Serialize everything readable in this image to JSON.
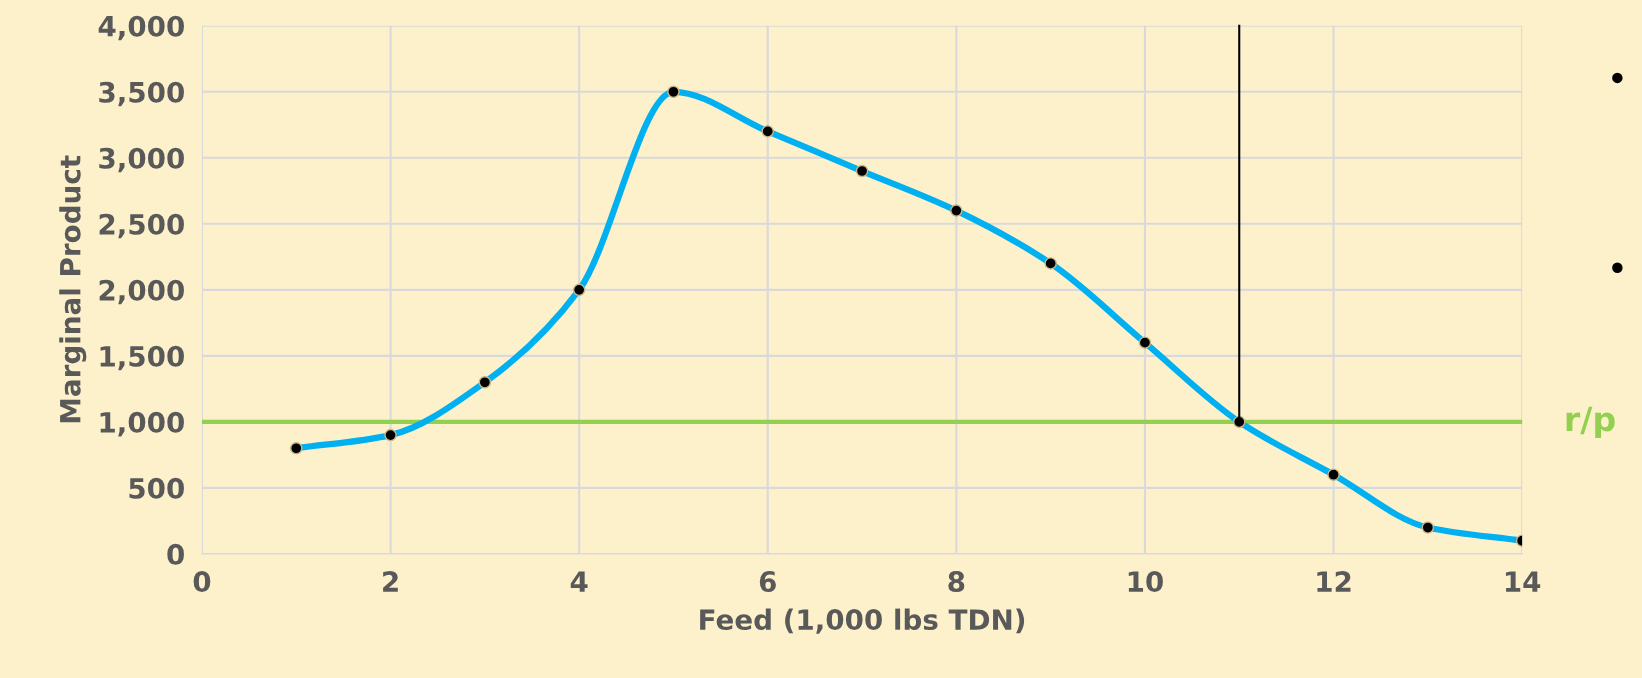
{
  "chart_data": {
    "type": "line",
    "xlabel": "Feed (1,000 lbs TDN)",
    "ylabel": "Marginal Product",
    "x": [
      1,
      2,
      3,
      4,
      5,
      6,
      7,
      8,
      9,
      10,
      11,
      12,
      13,
      14
    ],
    "series": [
      {
        "color": "#00b0f0",
        "values": [
          800,
          900,
          1300,
          2000,
          3500,
          3200,
          2900,
          2600,
          2200,
          1600,
          1000,
          600,
          200,
          100
        ]
      }
    ],
    "xlim": [
      0,
      14
    ],
    "xticks": [
      0,
      2,
      4,
      6,
      8,
      10,
      12,
      14
    ],
    "ylim": [
      0,
      4000
    ],
    "yticks": [
      {
        "value": 0,
        "label": "0"
      },
      {
        "value": 500,
        "label": "500"
      },
      {
        "value": 1000,
        "label": "1,000"
      },
      {
        "value": 1500,
        "label": "1,500"
      },
      {
        "value": 2000,
        "label": "2,000"
      },
      {
        "value": 2500,
        "label": "2,500"
      },
      {
        "value": 3000,
        "label": "3,000"
      },
      {
        "value": 3500,
        "label": "3,500"
      },
      {
        "value": 4000,
        "label": "4,000"
      }
    ],
    "ref_lines": [
      {
        "axis": "y",
        "value": 1000,
        "label": "r/p",
        "color": "#92d050"
      },
      {
        "axis": "x",
        "value": 11,
        "label": null,
        "color": "#000000"
      }
    ],
    "annotations": [
      "•",
      "•"
    ],
    "grid": true,
    "marker": "circle",
    "line_style": "solid",
    "legend": false
  }
}
